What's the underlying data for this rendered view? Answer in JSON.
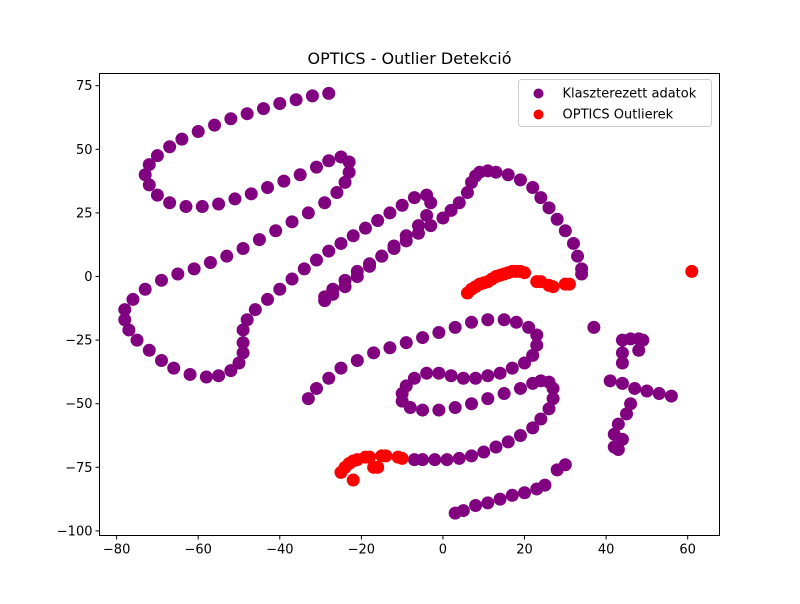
{
  "chart_data": {
    "type": "scatter",
    "title": "OPTICS - Outlier Detekció",
    "xlim": [
      -84.2,
      67.8
    ],
    "ylim": [
      -101.8,
      79.8
    ],
    "xticks": [
      {
        "value": -80,
        "label": "−80"
      },
      {
        "value": -60,
        "label": "−60"
      },
      {
        "value": -40,
        "label": "−40"
      },
      {
        "value": -20,
        "label": "−20"
      },
      0,
      20,
      40,
      60
    ],
    "yticks": [
      {
        "value": -100,
        "label": "−100"
      },
      {
        "value": -75,
        "label": "−75"
      },
      {
        "value": -50,
        "label": "−50"
      },
      {
        "value": -25,
        "label": "−25"
      },
      0,
      25,
      50,
      75
    ],
    "legend": "upper right",
    "series": [
      {
        "name": "Klaszterezett adatok",
        "color": "#800080",
        "x": [
          -28,
          -32,
          -36,
          -40,
          -44,
          -48,
          -52,
          -56,
          -60,
          -64,
          -67,
          -70,
          -72,
          -73,
          -72,
          -70,
          -67,
          -63,
          -59,
          -55,
          -51,
          -47,
          -43,
          -39,
          -35,
          -31,
          -28,
          -25,
          -23,
          -23,
          -24,
          -26,
          -29,
          -33,
          -37,
          -41,
          -45,
          -49,
          -53,
          -57,
          -61,
          -65,
          -69,
          -73,
          -76,
          -78,
          -78,
          -77,
          -75,
          -72,
          -69,
          -66,
          -62,
          -58,
          -55,
          -52,
          -50,
          -49,
          -49,
          -49,
          -48,
          -46,
          -43,
          -40,
          -37,
          -34,
          -31,
          -28,
          -25,
          -22,
          -19,
          -16,
          -13,
          -10,
          -7,
          -4,
          -3,
          -4,
          -6,
          -9,
          -12,
          -15,
          -18,
          -21,
          -24,
          -27,
          -29,
          -29,
          -27,
          -24,
          -21,
          -18,
          -15,
          -12,
          -9,
          -6,
          -3,
          0,
          2,
          4,
          6,
          7,
          8,
          9,
          11,
          13,
          16,
          19,
          22,
          24,
          26,
          28,
          30,
          32,
          33,
          34,
          34,
          -33,
          -31,
          -28,
          -25,
          -21,
          -17,
          -13,
          -9,
          -5,
          -1,
          3,
          7,
          11,
          15,
          18,
          21,
          23,
          23,
          22,
          20,
          17,
          14,
          11,
          8,
          5,
          2,
          -1,
          -4,
          -7,
          -9,
          -10,
          -10,
          -8,
          -5,
          -1,
          3,
          7,
          11,
          15,
          19,
          22,
          24,
          26,
          27,
          27,
          26,
          24,
          22,
          19,
          16,
          13,
          10,
          7,
          4,
          1,
          -2,
          -5,
          -7,
          3,
          5,
          8,
          11,
          14,
          17,
          20,
          23,
          25,
          28,
          30,
          37,
          44,
          46,
          48,
          49,
          44,
          48,
          44,
          41,
          44,
          47,
          50,
          53,
          56,
          46,
          45,
          43,
          42,
          44,
          43,
          42
        ],
        "y": [
          72,
          71,
          69.5,
          68,
          66,
          64,
          62,
          59.5,
          57,
          54,
          51,
          47.5,
          44,
          40,
          36,
          32,
          29,
          27.5,
          27.5,
          28.5,
          30.5,
          32.5,
          35,
          37.5,
          40,
          43,
          45.5,
          47,
          45,
          41,
          37,
          33,
          29,
          25,
          21.5,
          18,
          14.5,
          11,
          8,
          5.5,
          3,
          1,
          -1.5,
          -5,
          -9,
          -13,
          -17,
          -21,
          -25,
          -29,
          -33,
          -36,
          -38.5,
          -39.5,
          -39,
          -37,
          -34,
          -30,
          -26,
          -21,
          -17,
          -13,
          -9,
          -5,
          -1,
          3,
          6.5,
          10,
          13,
          16,
          19,
          22,
          25,
          28,
          31,
          32,
          29,
          24,
          20,
          16,
          12,
          8,
          4,
          0,
          -4,
          -7,
          -9.5,
          -8,
          -5,
          -1.5,
          2,
          5,
          8,
          11,
          14,
          17,
          20,
          23,
          26,
          29,
          33,
          37,
          39.5,
          41,
          41.5,
          41,
          40,
          38,
          35,
          31,
          27,
          22.5,
          18,
          13,
          8,
          3,
          1,
          -48,
          -44,
          -40,
          -36,
          -33,
          -30,
          -28,
          -26,
          -24,
          -22,
          -20,
          -18,
          -17,
          -17,
          -18,
          -20,
          -23,
          -27,
          -31,
          -34,
          -36,
          -38,
          -39,
          -40,
          -40,
          -39,
          -38,
          -38,
          -40,
          -43,
          -46,
          -49,
          -51.5,
          -52.5,
          -52.5,
          -51.5,
          -50,
          -48,
          -46,
          -44,
          -42,
          -41,
          -41.5,
          -44,
          -48,
          -52,
          -56,
          -59.5,
          -62.5,
          -65,
          -67,
          -69,
          -70.5,
          -71.5,
          -72,
          -72,
          -72,
          -72,
          -93,
          -92,
          -90,
          -89,
          -87.5,
          -86,
          -85,
          -83.5,
          -82,
          -76,
          -74,
          -20,
          -25,
          -24.5,
          -24.5,
          -25,
          -30,
          -29,
          -34,
          -41,
          -42,
          -44,
          -45,
          -46,
          -47,
          -50,
          -54,
          -58,
          -62,
          -64,
          -68,
          -67
        ]
      },
      {
        "name": "OPTICS Outlierek",
        "color": "#ff0000",
        "x": [
          6,
          7,
          8,
          9,
          10,
          11,
          12,
          13,
          14,
          15,
          16,
          17,
          18,
          19,
          20,
          23,
          24,
          26,
          27,
          30,
          31,
          61,
          -25,
          -24,
          -23,
          -22,
          -21,
          -22,
          -19,
          -18,
          -17,
          -16,
          -15,
          -14,
          -11,
          -10
        ],
        "y": [
          -6.5,
          -5,
          -4,
          -3,
          -2.5,
          -2,
          -1,
          0,
          0.5,
          1,
          1.5,
          2,
          2,
          2,
          1.5,
          -2,
          -2,
          -3.5,
          -4,
          -3,
          -3,
          2,
          -77,
          -75,
          -73.5,
          -72.5,
          -72,
          -80,
          -71,
          -71,
          -75,
          -75,
          -70.5,
          -70.5,
          -71,
          -71.5
        ]
      }
    ]
  }
}
